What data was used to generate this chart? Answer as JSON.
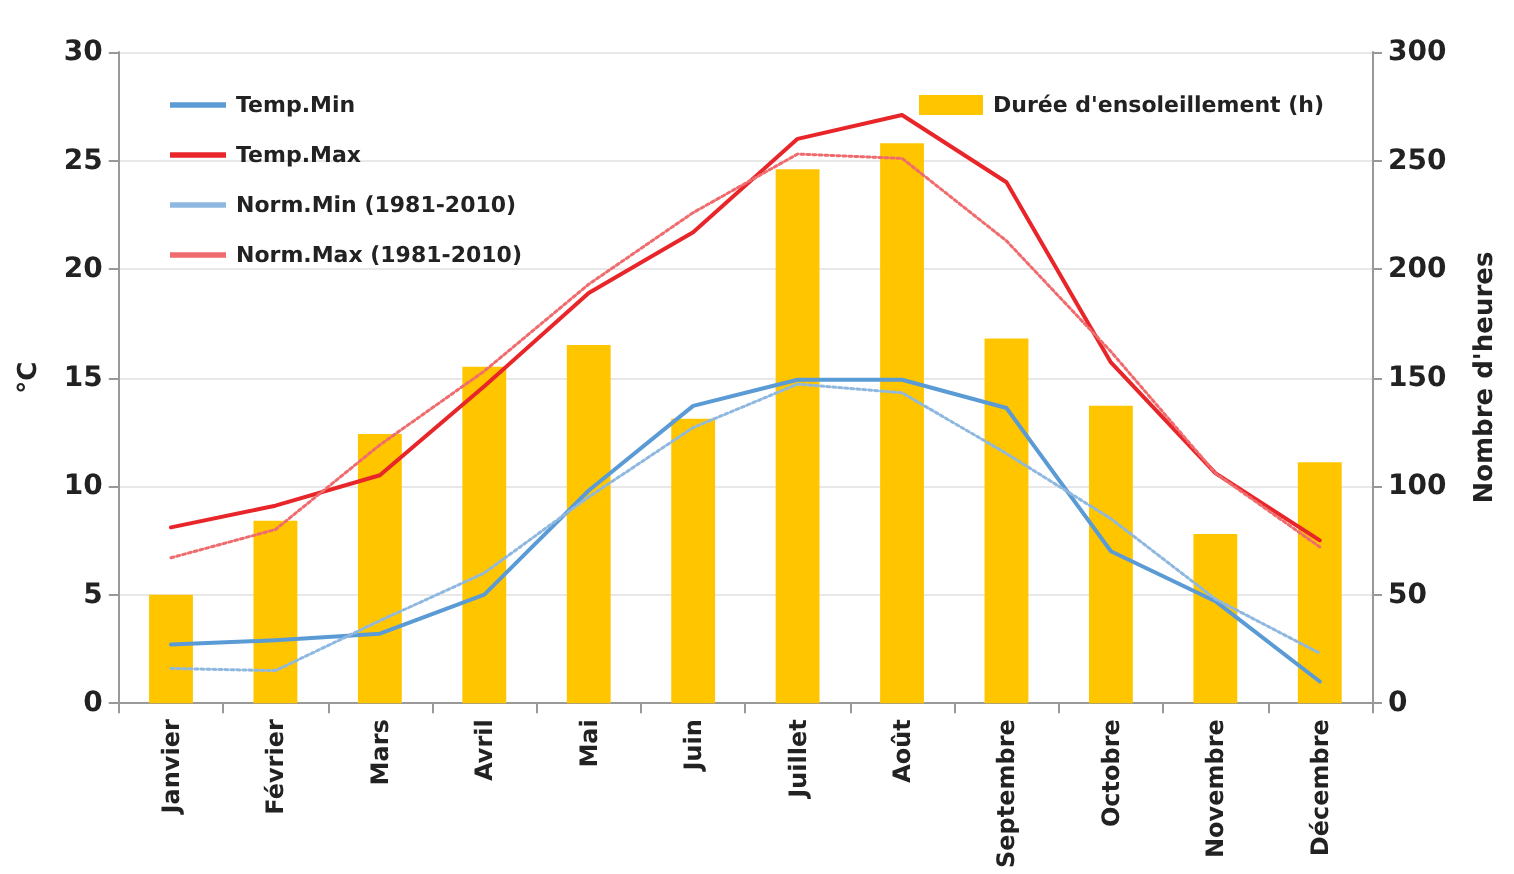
{
  "chart_data": {
    "type": "line",
    "ylabel": "°C",
    "y2label": "Nombre d'heures",
    "categories": [
      "Janvier",
      "Février",
      "Mars",
      "Avril",
      "Mai",
      "Juin",
      "Juillet",
      "Août",
      "Septembre",
      "Octobre",
      "Novembre",
      "Décembre"
    ],
    "series": [
      {
        "name": "Durée d'ensoleillement (h)",
        "type": "bar",
        "axis": "y2",
        "color": "#ffc600",
        "values": [
          50,
          84,
          124,
          155,
          165,
          131,
          246,
          258,
          168,
          137,
          78,
          111
        ]
      },
      {
        "name": "Temp.Min",
        "color": "#5b9bd5",
        "line_style": "solid",
        "values": [
          2.7,
          2.9,
          3.2,
          5.0,
          9.8,
          13.7,
          14.9,
          14.9,
          13.6,
          7.0,
          4.7,
          1.0
        ]
      },
      {
        "name": "Temp.Max",
        "color": "#e8262a",
        "line_style": "solid",
        "values": [
          8.1,
          9.1,
          10.5,
          14.6,
          18.9,
          21.7,
          26.0,
          27.1,
          24.0,
          15.7,
          10.6,
          7.5
        ]
      },
      {
        "name": "Norm.Min (1981-2010)",
        "color": "#8fb8e0",
        "line_style": "dotted",
        "values": [
          1.6,
          1.5,
          3.8,
          6.0,
          9.5,
          12.7,
          14.7,
          14.3,
          11.5,
          8.5,
          4.8,
          2.3
        ]
      },
      {
        "name": "Norm.Max (1981-2010)",
        "color": "#f06b6e",
        "line_style": "dotted",
        "values": [
          6.7,
          8.0,
          11.9,
          15.3,
          19.3,
          22.6,
          25.3,
          25.1,
          21.3,
          16.2,
          10.6,
          7.2
        ]
      }
    ],
    "ylim": [
      0,
      30
    ],
    "yticks": [
      0,
      5,
      10,
      15,
      20,
      25,
      30
    ],
    "y2lim": [
      0,
      300
    ],
    "y2ticks": [
      0,
      50,
      100,
      150,
      200,
      250,
      300
    ],
    "grid": "y",
    "legend": "top",
    "marker": "none"
  }
}
